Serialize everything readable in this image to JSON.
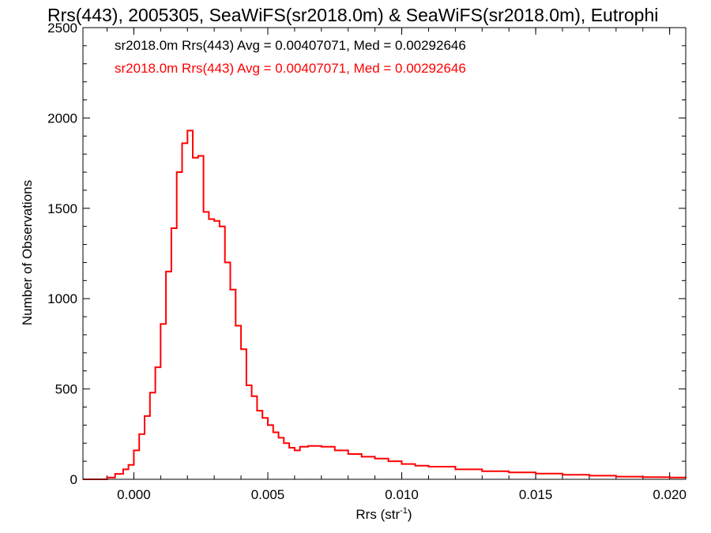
{
  "chart_data": {
    "type": "line",
    "title": "Rrs(443), 2005305, SeaWiFS(sr2018.0m) & SeaWiFS(sr2018.0m), Eutrophi",
    "xlabel": "Rrs (str",
    "xlabel_sup": "-1",
    "xlabel_close": ")",
    "ylabel": "Number of Observations",
    "xlim": [
      -0.0019,
      0.0206
    ],
    "ylim": [
      0,
      2500
    ],
    "x_ticks": [
      0.0,
      0.005,
      0.01,
      0.015,
      0.02
    ],
    "x_tick_labels": [
      "0.000",
      "0.005",
      "0.010",
      "0.015",
      "0.020"
    ],
    "y_ticks": [
      0,
      500,
      1000,
      1500,
      2000,
      2500
    ],
    "y_tick_labels": [
      "0",
      "500",
      "1000",
      "1500",
      "2000",
      "2500"
    ],
    "grid": false,
    "legend_placement": "top-left",
    "annotations": [
      {
        "text": "sr2018.0m Rrs(443) Avg = 0.00407071, Med = 0.00292646",
        "color": "#000000"
      },
      {
        "text": "sr2018.0m Rrs(443) Avg = 0.00407071, Med = 0.00292646",
        "color": "#ff0000"
      }
    ],
    "series": [
      {
        "color": "#ff0000",
        "step": true,
        "x": [
          -0.0019,
          -0.0013,
          -0.001,
          -0.0007,
          -0.0004,
          -0.0002,
          0.0,
          0.0002,
          0.0004,
          0.0006,
          0.0008,
          0.001,
          0.0012,
          0.0014,
          0.0016,
          0.0018,
          0.002,
          0.0022,
          0.0024,
          0.0026,
          0.0028,
          0.003,
          0.0032,
          0.0034,
          0.0036,
          0.0038,
          0.004,
          0.0042,
          0.0044,
          0.0046,
          0.0048,
          0.005,
          0.0052,
          0.0054,
          0.0056,
          0.0058,
          0.006,
          0.0062,
          0.0065,
          0.007,
          0.0075,
          0.008,
          0.0085,
          0.009,
          0.0095,
          0.01,
          0.0105,
          0.011,
          0.012,
          0.013,
          0.014,
          0.015,
          0.016,
          0.017,
          0.018,
          0.019,
          0.02,
          0.0206
        ],
        "values": [
          0,
          0,
          10,
          30,
          55,
          80,
          160,
          250,
          350,
          480,
          620,
          860,
          1150,
          1390,
          1700,
          1860,
          1930,
          1780,
          1790,
          1480,
          1440,
          1430,
          1400,
          1200,
          1050,
          850,
          720,
          520,
          460,
          380,
          340,
          300,
          260,
          230,
          200,
          175,
          160,
          180,
          185,
          180,
          160,
          140,
          125,
          115,
          100,
          85,
          75,
          70,
          55,
          45,
          38,
          32,
          25,
          20,
          15,
          12,
          10,
          8
        ]
      }
    ]
  }
}
